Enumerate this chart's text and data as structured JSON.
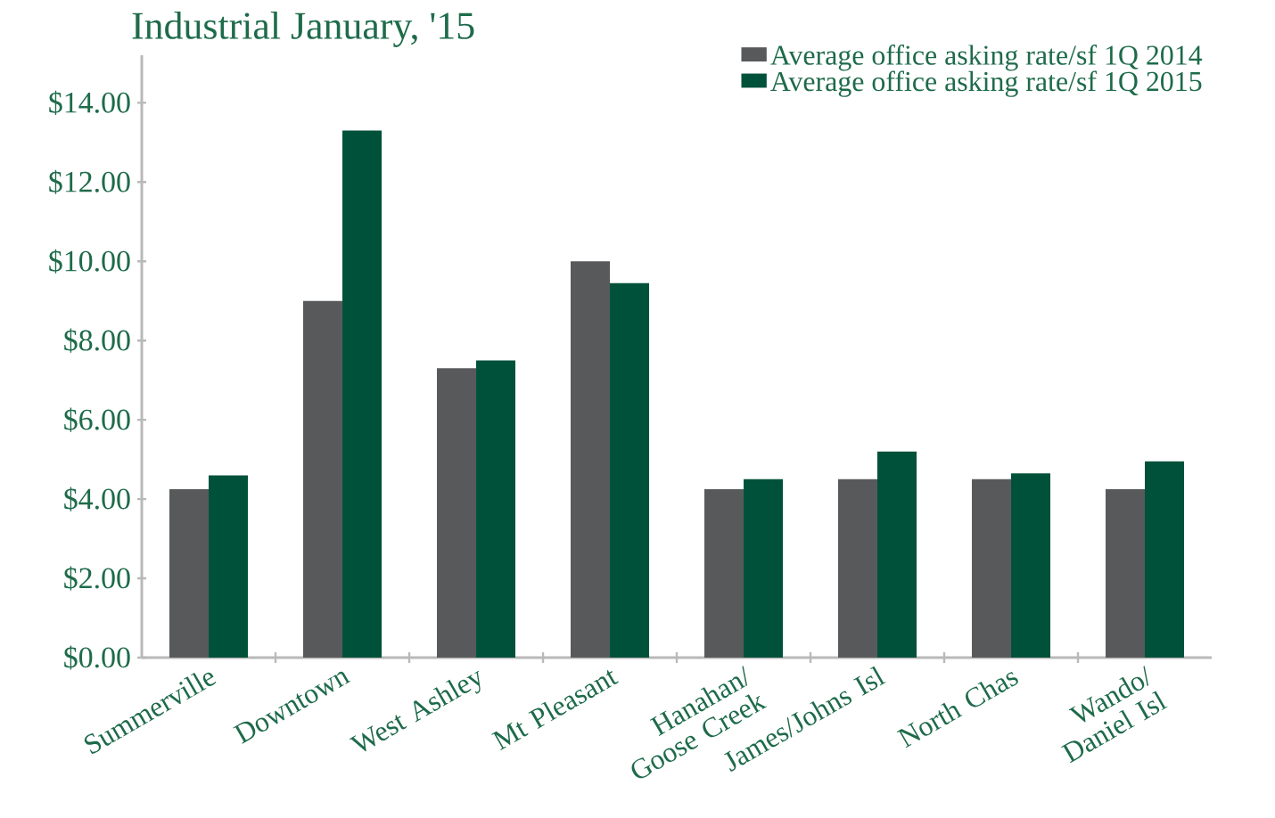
{
  "chart_data": {
    "type": "bar",
    "title": "Industrial January, '15",
    "categories": [
      "Summerville",
      "Downtown",
      "West Ashley",
      "Mt Pleasant",
      "Hanahan/ Goose Creek",
      "James/Johns Isl",
      "North Chas",
      "Wando/ Daniel Isl"
    ],
    "series": [
      {
        "name": "Average office asking rate/sf 1Q 2014",
        "color": "#58595b",
        "values": [
          4.25,
          9.0,
          7.3,
          10.0,
          4.25,
          4.5,
          4.5,
          4.25
        ]
      },
      {
        "name": "Average office asking rate/sf 1Q 2015",
        "color": "#00513a",
        "values": [
          4.6,
          13.3,
          7.5,
          9.45,
          4.5,
          5.2,
          4.65,
          4.95
        ]
      }
    ],
    "ylim": [
      0,
      15.2
    ],
    "yticks": [
      {
        "value": 0,
        "label": "$0.00"
      },
      {
        "value": 2,
        "label": "$2.00"
      },
      {
        "value": 4,
        "label": "$4.00"
      },
      {
        "value": 6,
        "label": "$6.00"
      },
      {
        "value": 8,
        "label": "$8.00"
      },
      {
        "value": 10,
        "label": "$10.00"
      },
      {
        "value": 12,
        "label": "$12.00"
      },
      {
        "value": 14,
        "label": "$14.00"
      }
    ],
    "grid": false,
    "legend": "top right"
  }
}
